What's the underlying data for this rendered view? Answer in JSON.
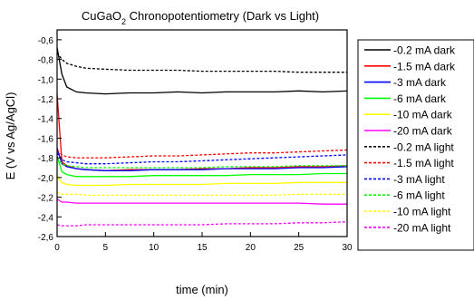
{
  "chart_data": {
    "type": "line",
    "title": "CuGaO",
    "title_sub": "2",
    "title_rest": " Chronopotentiometry (Dark vs Light)",
    "xlabel": "time (min)",
    "ylabel": "E (V vs Ag/AgCl)",
    "xlim": [
      0,
      30
    ],
    "ylim": [
      -2.6,
      -0.5
    ],
    "xticks": [
      0,
      5,
      10,
      15,
      20,
      25,
      30
    ],
    "xtick_labels": [
      "0",
      "5",
      "10",
      "15",
      "20",
      "25",
      "30"
    ],
    "yticks": [
      -0.6,
      -0.8,
      -1.0,
      -1.2,
      -1.4,
      -1.6,
      -1.8,
      -2.0,
      -2.2,
      -2.4,
      -2.6
    ],
    "ytick_labels": [
      "-0,6",
      "-0,8",
      "-1,0",
      "-1,2",
      "-1,4",
      "-1,6",
      "-1,8",
      "-2,0",
      "-2,2",
      "-2,4",
      "-2,6"
    ],
    "grid": false,
    "legend_position": "right",
    "x": [
      0,
      0.5,
      1,
      2,
      3,
      5,
      7.5,
      10,
      12.5,
      15,
      17.5,
      20,
      22.5,
      25,
      27.5,
      30
    ],
    "series": [
      {
        "name": "-0.2 mA dark",
        "color": "#000000",
        "dash": "solid",
        "values": [
          -0.68,
          -0.95,
          -1.08,
          -1.13,
          -1.14,
          -1.15,
          -1.14,
          -1.14,
          -1.13,
          -1.14,
          -1.13,
          -1.13,
          -1.13,
          -1.12,
          -1.13,
          -1.12
        ]
      },
      {
        "name": "-1.5 mA dark",
        "color": "#ff0000",
        "dash": "solid",
        "values": [
          -1.15,
          -1.84,
          -1.88,
          -1.91,
          -1.92,
          -1.93,
          -1.92,
          -1.92,
          -1.92,
          -1.91,
          -1.91,
          -1.9,
          -1.9,
          -1.89,
          -1.89,
          -1.88
        ]
      },
      {
        "name": "-3 mA dark",
        "color": "#0000ff",
        "dash": "solid",
        "values": [
          -1.7,
          -1.86,
          -1.89,
          -1.91,
          -1.92,
          -1.93,
          -1.93,
          -1.92,
          -1.92,
          -1.92,
          -1.91,
          -1.91,
          -1.91,
          -1.9,
          -1.9,
          -1.89
        ]
      },
      {
        "name": "-6 mA dark",
        "color": "#00ff00",
        "dash": "solid",
        "values": [
          -1.78,
          -1.94,
          -1.97,
          -1.99,
          -1.99,
          -1.99,
          -1.99,
          -1.98,
          -1.98,
          -1.98,
          -1.98,
          -1.97,
          -1.97,
          -1.97,
          -1.96,
          -1.96
        ]
      },
      {
        "name": "-10 mA dark",
        "color": "#ffff00",
        "dash": "solid",
        "values": [
          -1.98,
          -2.05,
          -2.07,
          -2.08,
          -2.08,
          -2.08,
          -2.07,
          -2.07,
          -2.07,
          -2.07,
          -2.06,
          -2.06,
          -2.06,
          -2.05,
          -2.05,
          -2.05
        ]
      },
      {
        "name": "-20 mA dark",
        "color": "#ff00ff",
        "dash": "solid",
        "values": [
          -2.22,
          -2.25,
          -2.25,
          -2.26,
          -2.26,
          -2.26,
          -2.26,
          -2.26,
          -2.26,
          -2.26,
          -2.26,
          -2.26,
          -2.26,
          -2.26,
          -2.27,
          -2.27
        ]
      },
      {
        "name": "-0.2 mA light",
        "color": "#000000",
        "dash": "dash",
        "values": [
          -0.73,
          -0.8,
          -0.84,
          -0.87,
          -0.89,
          -0.9,
          -0.91,
          -0.91,
          -0.91,
          -0.92,
          -0.92,
          -0.92,
          -0.92,
          -0.93,
          -0.93,
          -0.93
        ]
      },
      {
        "name": "-1.5 mA light",
        "color": "#ff0000",
        "dash": "dash",
        "values": [
          -1.72,
          -1.77,
          -1.79,
          -1.8,
          -1.8,
          -1.8,
          -1.79,
          -1.78,
          -1.78,
          -1.77,
          -1.76,
          -1.75,
          -1.75,
          -1.74,
          -1.73,
          -1.72
        ]
      },
      {
        "name": "-3 mA light",
        "color": "#0000ff",
        "dash": "dash",
        "values": [
          -1.75,
          -1.82,
          -1.84,
          -1.85,
          -1.86,
          -1.86,
          -1.85,
          -1.84,
          -1.84,
          -1.83,
          -1.82,
          -1.81,
          -1.8,
          -1.79,
          -1.78,
          -1.77
        ]
      },
      {
        "name": "-6 mA light",
        "color": "#00ff00",
        "dash": "dash",
        "values": [
          -1.8,
          -1.86,
          -1.88,
          -1.89,
          -1.9,
          -1.9,
          -1.9,
          -1.9,
          -1.9,
          -1.9,
          -1.89,
          -1.89,
          -1.89,
          -1.88,
          -1.88,
          -1.88
        ]
      },
      {
        "name": "-10 mA light",
        "color": "#ffff00",
        "dash": "dash",
        "values": [
          -2.15,
          -2.17,
          -2.17,
          -2.17,
          -2.18,
          -2.18,
          -2.18,
          -2.18,
          -2.18,
          -2.18,
          -2.18,
          -2.18,
          -2.18,
          -2.17,
          -2.17,
          -2.17
        ]
      },
      {
        "name": "-20 mA light",
        "color": "#ff00ff",
        "dash": "dash",
        "values": [
          -2.48,
          -2.49,
          -2.49,
          -2.49,
          -2.48,
          -2.48,
          -2.48,
          -2.48,
          -2.48,
          -2.48,
          -2.47,
          -2.47,
          -2.47,
          -2.46,
          -2.46,
          -2.45
        ]
      }
    ]
  }
}
